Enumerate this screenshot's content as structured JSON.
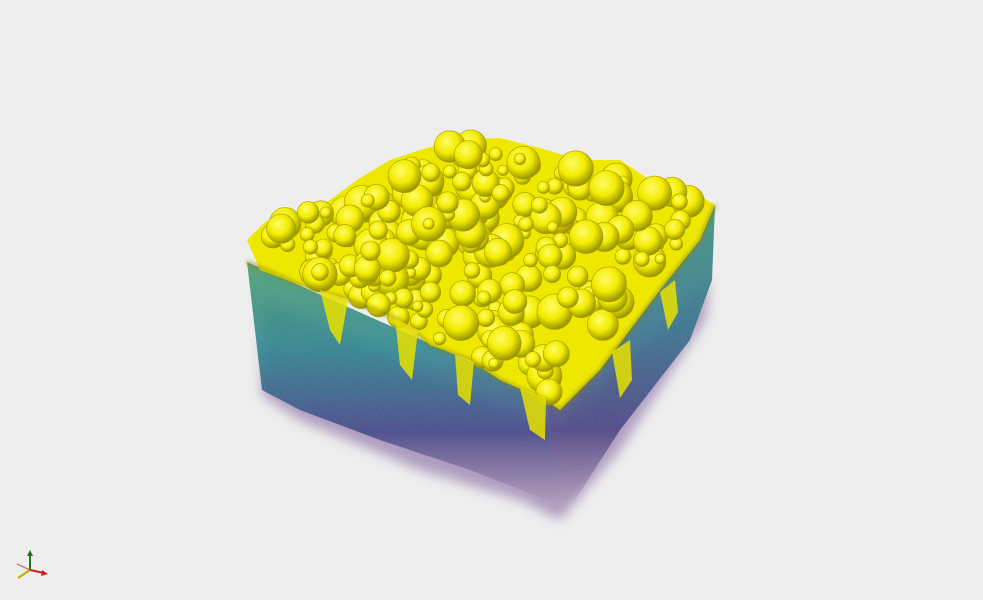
{
  "scene": {
    "background_color": "#eeeeee",
    "render_type": "volume",
    "colormap": [
      "#440154",
      "#3b528b",
      "#21918c",
      "#5ec962",
      "#fde725"
    ],
    "surface_color": "#f5f000",
    "surface_shadow": "#9a9400"
  },
  "orientation_widget": {
    "axes": [
      {
        "name": "x",
        "color": "#cc2020"
      },
      {
        "name": "y",
        "color": "#1a7a1a"
      },
      {
        "name": "z",
        "color": "#c8a800"
      }
    ]
  }
}
